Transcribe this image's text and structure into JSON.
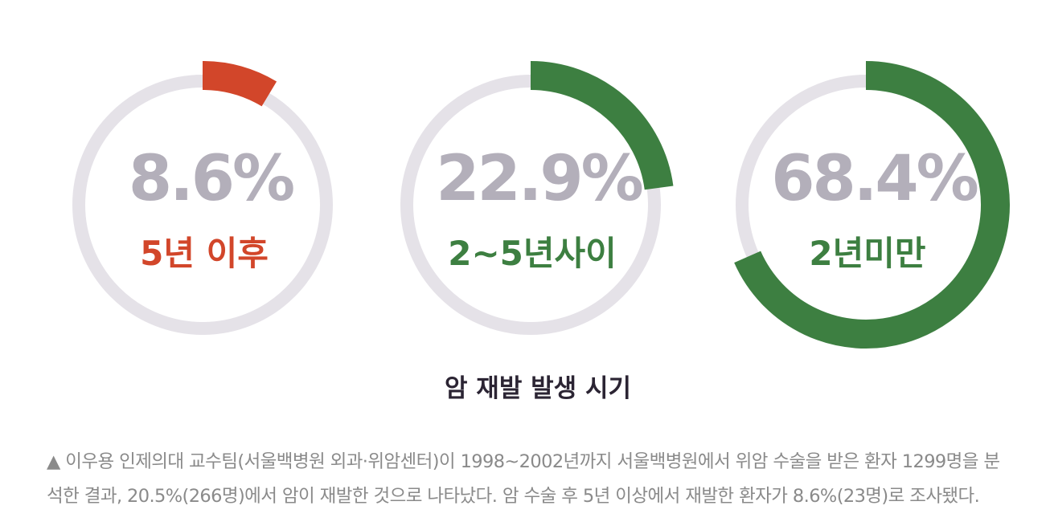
{
  "chart_data": {
    "type": "pie",
    "title": "암 재발 발생 시기",
    "unit": "%",
    "track_color": "#e5e2e8",
    "value_color": "#b3afba",
    "title_color": "#2b2433",
    "series": [
      {
        "label": "5년 이후",
        "value": 8.6,
        "value_text": "8.6%",
        "color": "#d2462a"
      },
      {
        "label": "2~5년사이",
        "value": 22.9,
        "value_text": "22.9%",
        "color": "#3d7f41"
      },
      {
        "label": "2년미만",
        "value": 68.4,
        "value_text": "68.4%",
        "color": "#3d7f41"
      }
    ]
  },
  "caption": {
    "line1": "▲ 이우용 인제의대 교수팀(서울백병원 외과·위암센터)이 1998~2002년까지 서울백병원에서 위암 수술을 받은 환자 1299명을 분",
    "line2": "석한 결과, 20.5%(266명)에서 암이 재발한 것으로 나타났다. 암 수술 후 5년 이상에서 재발한 환자가 8.6%(23명)로 조사됐다."
  }
}
